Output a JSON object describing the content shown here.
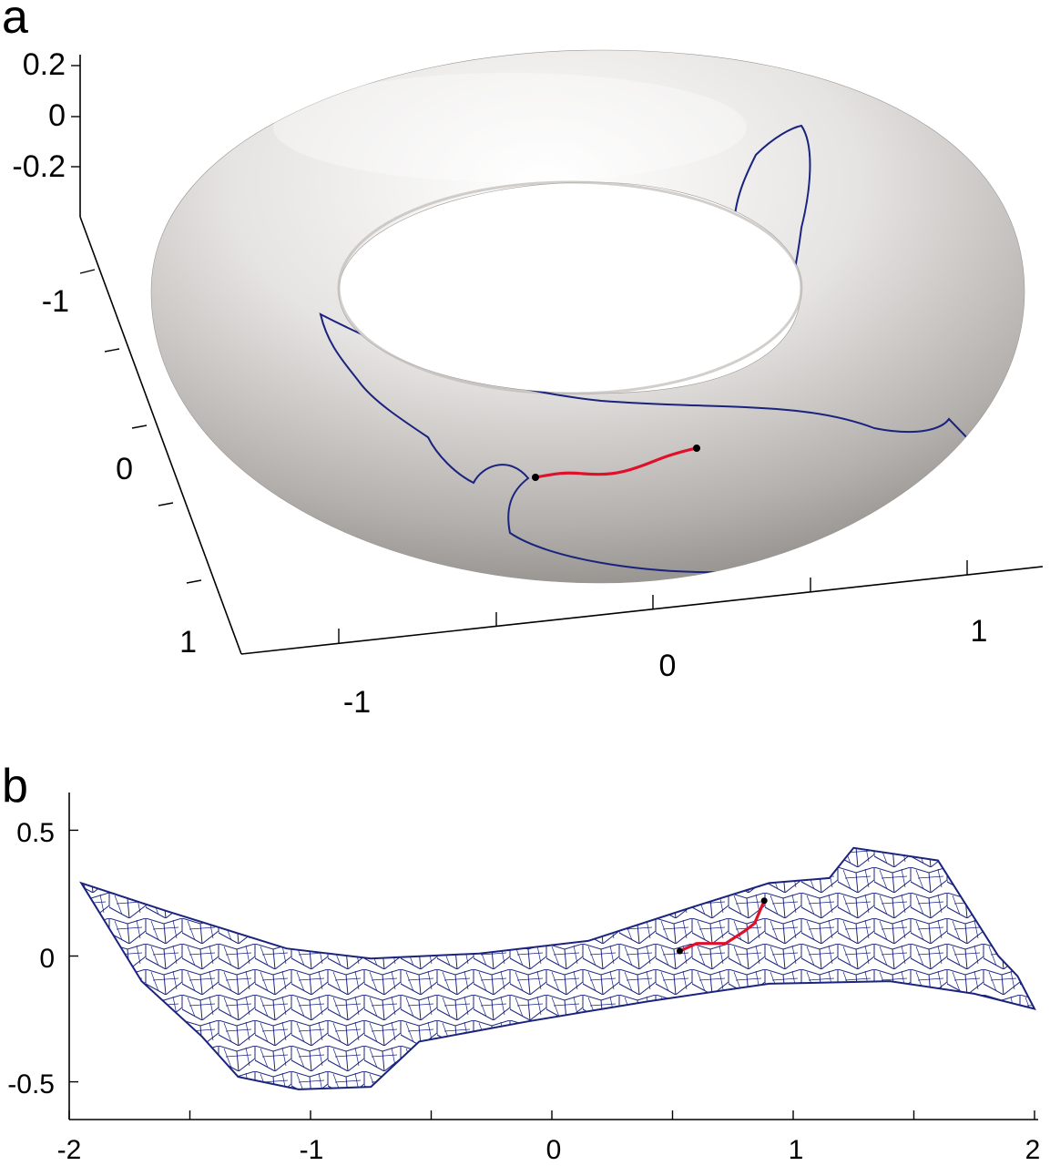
{
  "panel_a": {
    "label": "a",
    "z_ticks": [
      "0.2",
      "0",
      "-0.2"
    ],
    "y_ticks": [
      "-1",
      "0",
      "1"
    ],
    "x_ticks": [
      "-1",
      "0",
      "1"
    ]
  },
  "panel_b": {
    "label": "b",
    "y_ticks": [
      "0.5",
      "0",
      "-0.5"
    ],
    "x_ticks": [
      "-2",
      "-1",
      "0",
      "1",
      "2"
    ]
  },
  "colors": {
    "torus": "#e8e6e4",
    "mesh": "#1a237e",
    "path": "#e0102a"
  },
  "chart_data": [
    {
      "type": "surface-3d",
      "description": "torus surface with graph mesh and geodesic path",
      "zlim": [
        -0.3,
        0.25
      ],
      "z_ticks": [
        0.2,
        0,
        -0.2
      ],
      "y_ticks": [
        -1,
        0,
        1
      ],
      "x_ticks": [
        -1,
        0,
        1
      ]
    },
    {
      "type": "line",
      "description": "flattened mesh embedding with path",
      "xlim": [
        -2,
        2
      ],
      "ylim": [
        -0.65,
        0.65
      ],
      "x_ticks": [
        -2,
        -1,
        0,
        1,
        2
      ],
      "y_ticks": [
        0.5,
        0,
        -0.5
      ],
      "outline": {
        "x": [
          -1.95,
          -1.6,
          -1.1,
          -0.75,
          -0.3,
          0.15,
          0.6,
          0.9,
          1.15,
          1.25,
          1.6,
          1.85,
          1.93,
          2.0,
          1.75,
          1.4,
          0.9,
          0.4,
          -0.1,
          -0.55,
          -0.75,
          -1.05,
          -1.3,
          -1.45,
          -1.7,
          -1.95
        ],
        "y": [
          0.29,
          0.18,
          0.03,
          -0.01,
          0.01,
          0.06,
          0.2,
          0.29,
          0.31,
          0.43,
          0.38,
          0.0,
          -0.08,
          -0.21,
          -0.15,
          -0.1,
          -0.11,
          -0.18,
          -0.26,
          -0.34,
          -0.52,
          -0.53,
          -0.48,
          -0.32,
          -0.1,
          0.29
        ]
      },
      "path": {
        "x": [
          0.53,
          0.6,
          0.68,
          0.72,
          0.8,
          0.84,
          0.88
        ],
        "y": [
          0.02,
          0.05,
          0.05,
          0.05,
          0.1,
          0.13,
          0.22
        ]
      }
    }
  ]
}
